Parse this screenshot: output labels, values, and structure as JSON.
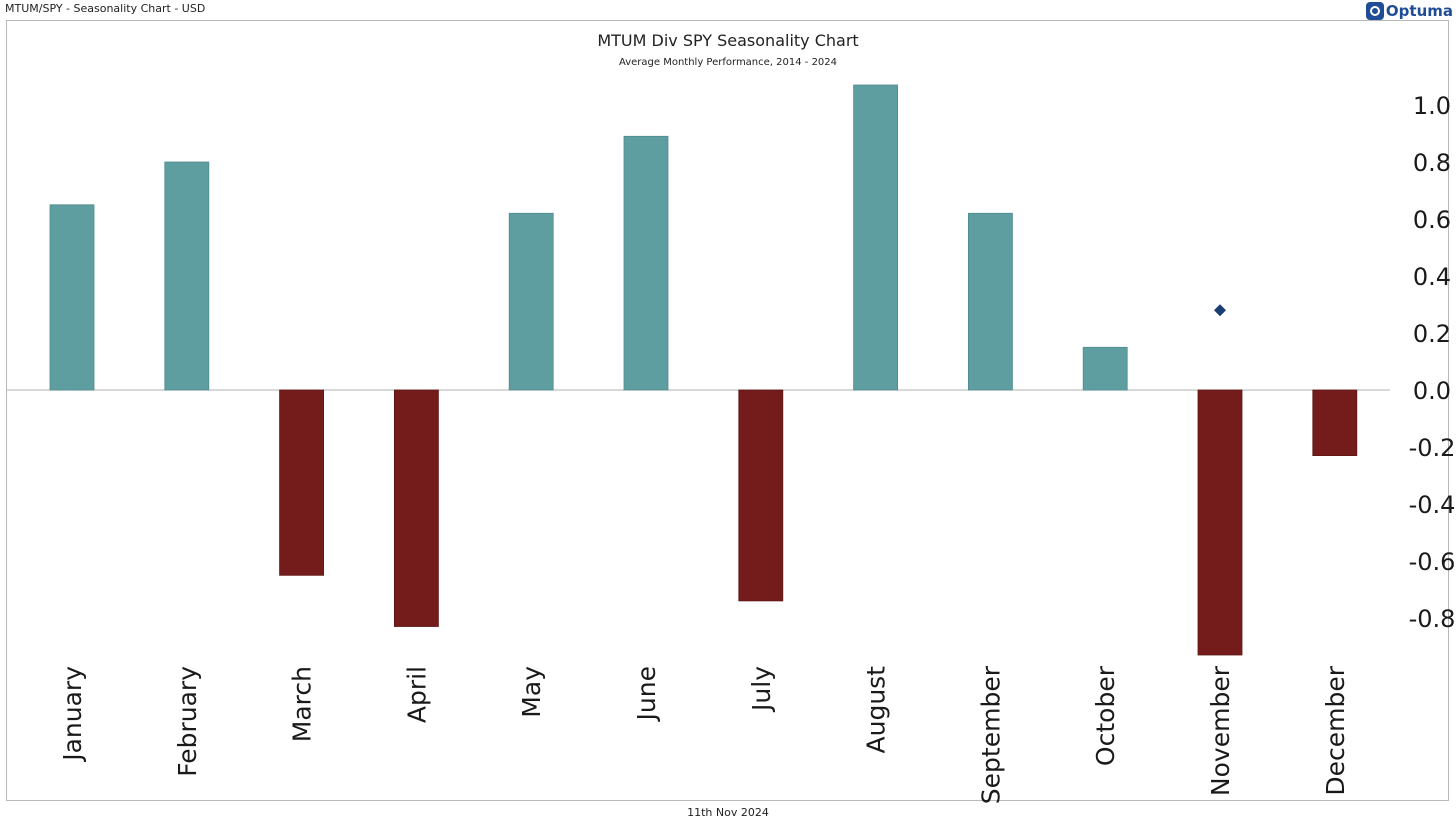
{
  "header": {
    "symbol_label": "MTUM/SPY - Seasonality Chart - USD",
    "brand": "Optuma"
  },
  "footer": {
    "date": "11th Nov 2024"
  },
  "colors": {
    "positive": "#5f9ea0",
    "negative": "#741c1c",
    "marker": "#1a3f73",
    "zero_line": "#b0b0b0"
  },
  "chart_data": {
    "type": "bar",
    "title": "MTUM Div SPY Seasonality Chart",
    "subtitle": "Average Monthly Performance, 2014 - 2024",
    "xlabel": "",
    "ylabel": "",
    "categories": [
      "January",
      "February",
      "March",
      "April",
      "May",
      "June",
      "July",
      "August",
      "September",
      "October",
      "November",
      "December"
    ],
    "values": [
      0.65,
      0.8,
      -0.65,
      -0.83,
      0.62,
      0.89,
      -0.74,
      1.07,
      0.62,
      0.15,
      -0.93,
      -0.23
    ],
    "marker": {
      "category": "November",
      "value": 0.28,
      "shape": "diamond"
    },
    "yticks": [
      "1.0",
      "0.8",
      "0.6",
      "0.4",
      "0.2",
      "0.0",
      "-0.2",
      "-0.4",
      "-0.6",
      "-0.8"
    ],
    "ylim": [
      -0.93,
      1.07
    ],
    "y_axis_side": "right",
    "grid": false,
    "legend": "none"
  }
}
